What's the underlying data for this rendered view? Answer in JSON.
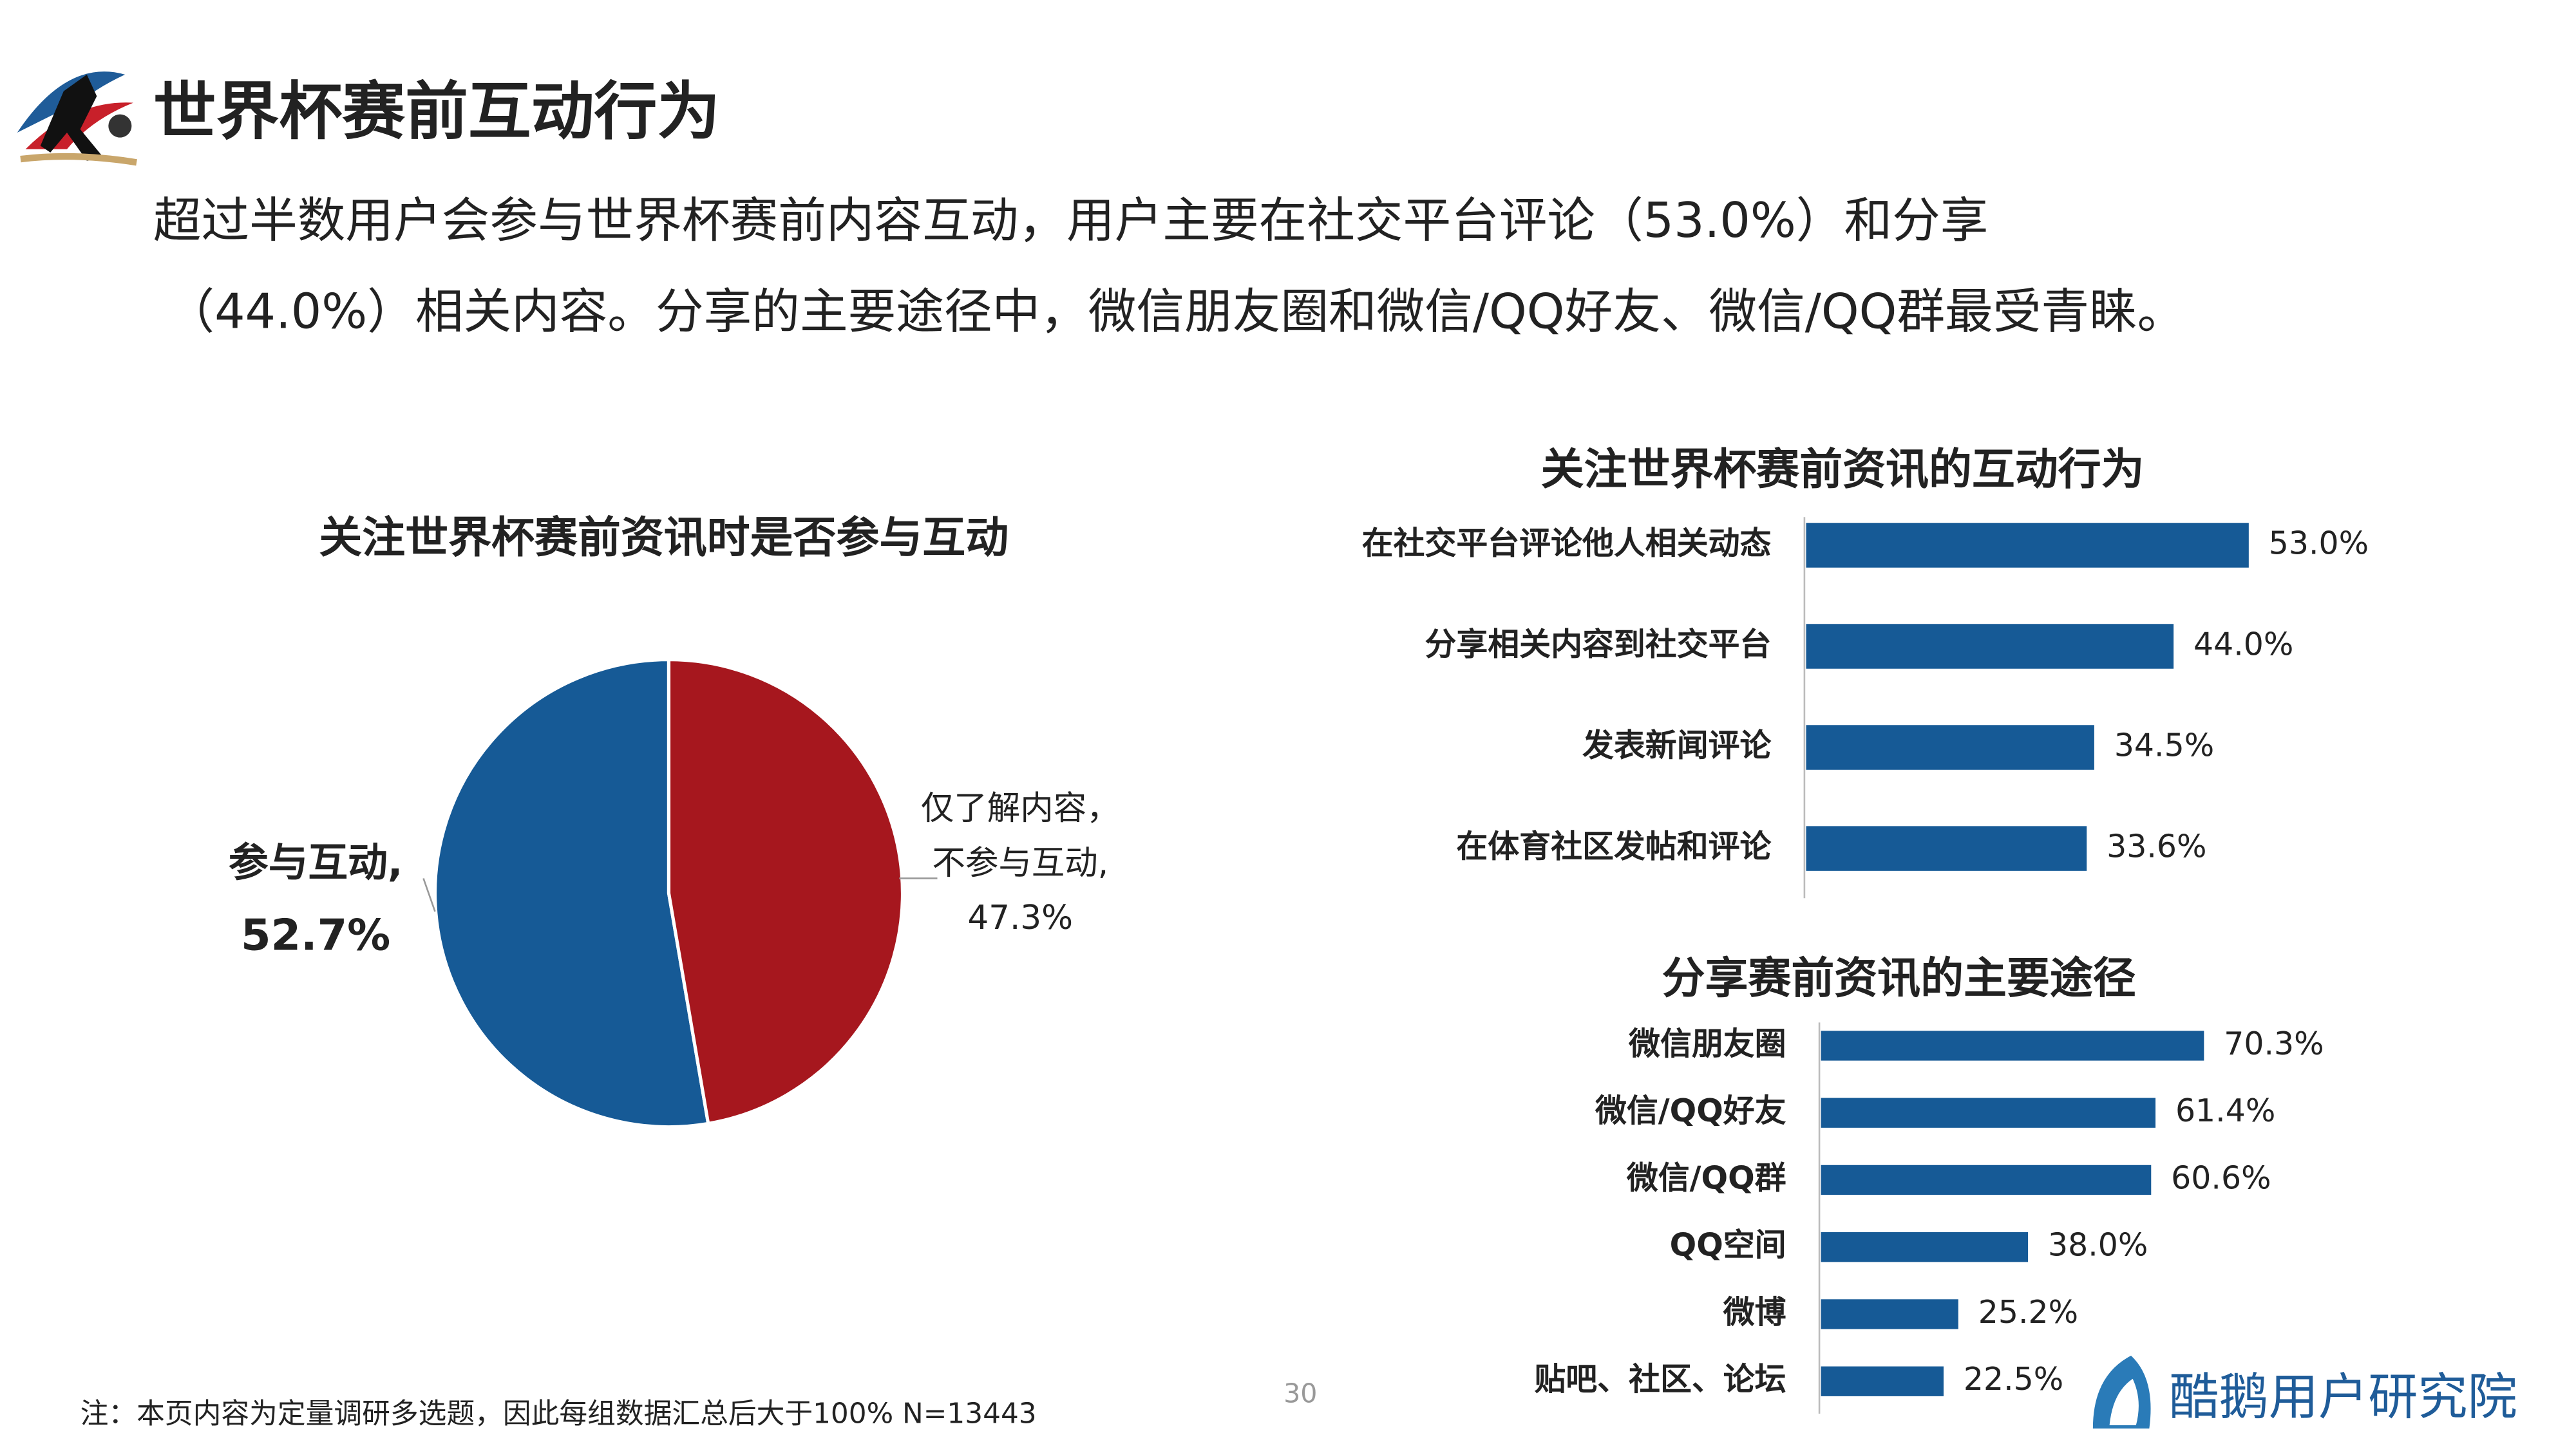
{
  "header": {
    "title": "世界杯赛前互动行为",
    "subtitle": [
      "超过半数用户会参与世界杯赛前内容互动，用户主要在社交平台评论（53.0%）和分享",
      "（44.0%）相关内容。分享的主要途径中，微信朋友圈和微信/QQ好友、微信/QQ群最受青睐。"
    ]
  },
  "chart_data": [
    {
      "type": "pie",
      "title": "关注世界杯赛前资讯时是否参与互动",
      "labels": [
        [
          "参与互动,"
        ],
        [
          "仅了解内容，",
          "不参与互动,"
        ]
      ],
      "values": [
        52.7,
        47.3
      ],
      "value_labels": [
        "52.7%",
        "47.3%"
      ],
      "colors": [
        "#165a96",
        "#a6171e"
      ]
    },
    {
      "type": "bar",
      "orientation": "horizontal",
      "title": "关注世界杯赛前资讯的互动行为",
      "categories": [
        "在社交平台评论他人相关动态",
        "分享相关内容到社交平台",
        "发表新闻评论",
        "在体育社区发帖和评论"
      ],
      "values": [
        53.0,
        44.0,
        34.5,
        33.6
      ],
      "value_labels": [
        "53.0%",
        "44.0%",
        "34.5%",
        "33.6%"
      ],
      "color": "#165a96"
    },
    {
      "type": "bar",
      "orientation": "horizontal",
      "title": "分享赛前资讯的主要途径",
      "categories": [
        "微信朋友圈",
        "微信/QQ好友",
        "微信/QQ群",
        "QQ空间",
        "微博",
        "贴吧、社区、论坛"
      ],
      "values": [
        70.3,
        61.4,
        60.6,
        38.0,
        25.2,
        22.5
      ],
      "value_labels": [
        "70.3%",
        "61.4%",
        "60.6%",
        "38.0%",
        "25.2%",
        "22.5%"
      ],
      "color": "#165a96"
    }
  ],
  "footer": {
    "note": "注：本页内容为定量调研多选题，因此每组数据汇总后大于100%   N=13443",
    "page": "30",
    "brand": "酷鹅用户研究院"
  }
}
